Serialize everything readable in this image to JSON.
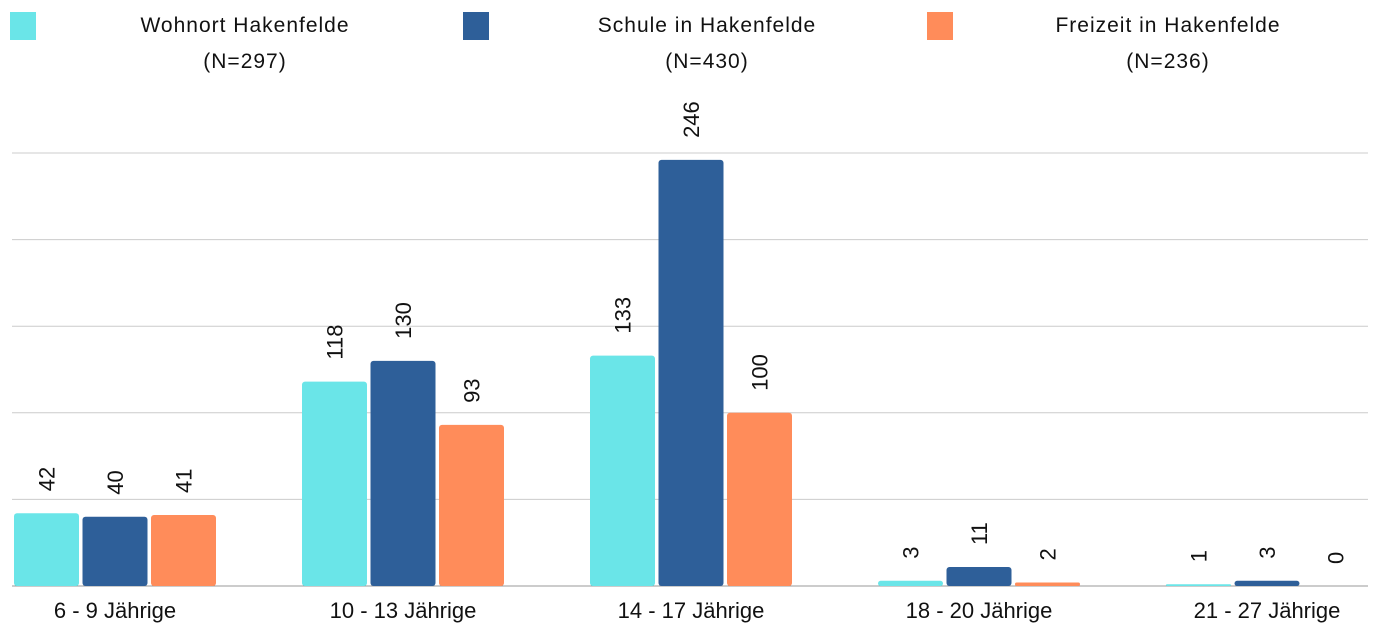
{
  "chart_data": {
    "type": "bar",
    "categories": [
      "6 - 9 Jährige",
      "10 - 13 Jährige",
      "14 - 17 Jährige",
      "18 - 20 Jährige",
      "21 - 27 Jährige"
    ],
    "series": [
      {
        "name": "Wohnort Hakenfelde\n(N=297)",
        "color": "#6ae5e8",
        "values": [
          42,
          118,
          133,
          3,
          1
        ]
      },
      {
        "name": "Schule in Hakenfelde\n(N=430)",
        "color": "#2e5f99",
        "values": [
          40,
          130,
          246,
          11,
          3
        ]
      },
      {
        "name": "Freizeit in Hakenfelde\n(N=236)",
        "color": "#ff8c5a",
        "values": [
          41,
          93,
          100,
          2,
          0
        ]
      }
    ],
    "ylim": [
      0,
      250
    ],
    "yticks": [
      0,
      50,
      100,
      150,
      200,
      250
    ],
    "grid": true,
    "legend": "top"
  }
}
